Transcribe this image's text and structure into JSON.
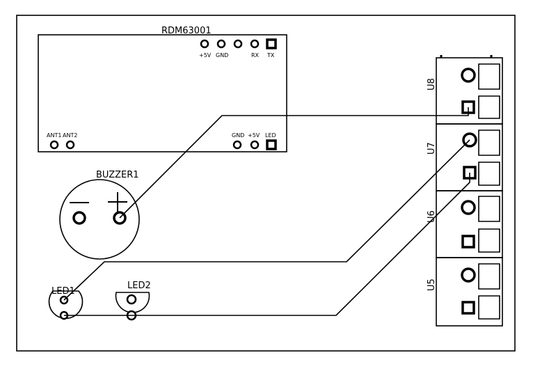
{
  "module": {
    "name": "RDM63001",
    "top_pins": [
      "+5V",
      "GND",
      "",
      "RX",
      "TX"
    ],
    "bottom_left_pins": [
      "ANT1",
      "ANT2"
    ],
    "bottom_right_pins": [
      "GND",
      "+5V",
      "LED"
    ]
  },
  "buzzer": {
    "name": "BUZZER1",
    "minus_symbol": "−",
    "plus_symbol": "+"
  },
  "leds": [
    {
      "name": "LED1"
    },
    {
      "name": "LED2"
    }
  ],
  "connectors": [
    {
      "name": "U8"
    },
    {
      "name": "U7"
    },
    {
      "name": "U6"
    },
    {
      "name": "U5"
    }
  ]
}
